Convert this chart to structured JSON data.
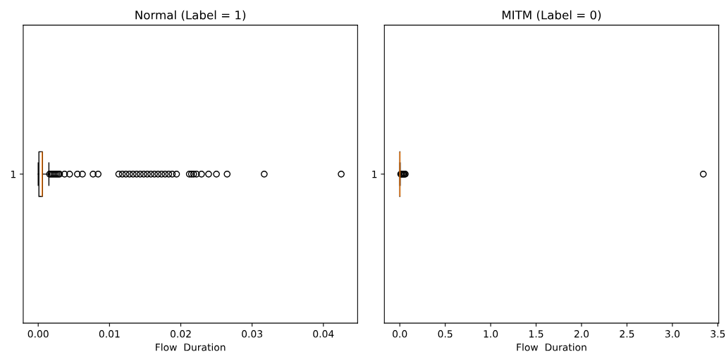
{
  "chart_data": [
    {
      "type": "box",
      "title": "Normal (Label = 1)",
      "xlabel": "Flow  Duration",
      "orientation": "horizontal",
      "categories": [
        "1"
      ],
      "marker": "circle",
      "series": [
        {
          "color": "#000000",
          "boxes": [
            {
              "low": 0.0,
              "q1": 0.0001,
              "median": 0.00055,
              "q3": 0.0006,
              "high": 0.0015,
              "outliers": [
                0.0016,
                0.0018,
                0.002,
                0.0022,
                0.0024,
                0.0026,
                0.0028,
                0.003,
                0.0037,
                0.0044,
                0.0055,
                0.0062,
                0.0077,
                0.0084,
                0.0113,
                0.0118,
                0.0123,
                0.0128,
                0.0133,
                0.0138,
                0.0143,
                0.0148,
                0.0153,
                0.0158,
                0.0163,
                0.0168,
                0.0173,
                0.0178,
                0.0183,
                0.0188,
                0.0194,
                0.0212,
                0.0215,
                0.0218,
                0.0222,
                0.0229,
                0.0239,
                0.025,
                0.0265,
                0.0317,
                0.0425
              ]
            }
          ]
        }
      ],
      "xlim": [
        -0.0021,
        0.0448
      ],
      "xticks": [
        {
          "value": 0,
          "label": "0.00"
        },
        {
          "value": 0.01,
          "label": "0.01"
        },
        {
          "value": 0.02,
          "label": "0.02"
        },
        {
          "value": 0.03,
          "label": "0.03"
        },
        {
          "value": 0.04,
          "label": "0.04"
        }
      ]
    },
    {
      "type": "box",
      "title": "MITM (Label = 0)",
      "xlabel": "Flow  Duration",
      "orientation": "horizontal",
      "categories": [
        "1"
      ],
      "marker": "circle",
      "series": [
        {
          "color": "#000000",
          "boxes": [
            {
              "low": 0.0,
              "q1": 0.0,
              "median": 0.001,
              "q3": 0.002,
              "high": 0.004,
              "outliers": [
                0.01,
                0.02,
                0.03,
                0.04,
                0.05,
                0.06,
                3.34
              ]
            }
          ]
        }
      ],
      "xlim": [
        -0.17,
        3.51
      ],
      "xticks": [
        {
          "value": 0,
          "label": "0.0"
        },
        {
          "value": 0.5,
          "label": "0.5"
        },
        {
          "value": 1.0,
          "label": "1.0"
        },
        {
          "value": 1.5,
          "label": "1.5"
        },
        {
          "value": 2.0,
          "label": "2.0"
        },
        {
          "value": 2.5,
          "label": "2.5"
        },
        {
          "value": 3.0,
          "label": "3.0"
        },
        {
          "value": 3.5,
          "label": "3.5"
        }
      ]
    }
  ]
}
